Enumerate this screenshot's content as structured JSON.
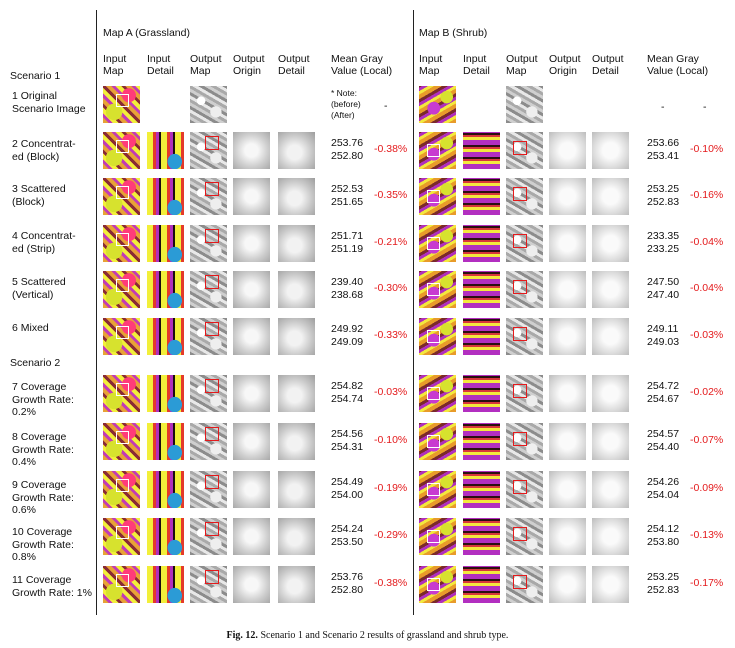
{
  "panels": [
    {
      "title": "Map A (Grassland)"
    },
    {
      "title": "Map B (Shrub)"
    }
  ],
  "column_headers": {
    "input_map": "Input Map",
    "input_detail": "Input Detail",
    "output_map": "Output Map",
    "output_origin": "Output Origin",
    "output_detail": "Output Detail",
    "mean_gray": "Mean Gray Value (Local)"
  },
  "scenario_labels": [
    "Scenario 1",
    "Scenario 2"
  ],
  "note_text": "* Note: (before) (After)",
  "dash": "-",
  "rows": [
    {
      "label": "1 Original Scenario Image",
      "a_before": "",
      "a_after": "",
      "a_pct": "",
      "b_before": "",
      "b_after": "",
      "b_pct": ""
    },
    {
      "label": "2 Concentrat-ed (Block)",
      "a_before": "253.76",
      "a_after": "252.80",
      "a_pct": "-0.38%",
      "b_before": "253.66",
      "b_after": "253.41",
      "b_pct": "-0.10%"
    },
    {
      "label": "3 Scattered (Block)",
      "a_before": "252.53",
      "a_after": "251.65",
      "a_pct": "-0.35%",
      "b_before": "253.25",
      "b_after": "252.83",
      "b_pct": "-0.16%"
    },
    {
      "label": "4 Concentrat-ed (Strip)",
      "a_before": "251.71",
      "a_after": "251.19",
      "a_pct": "-0.21%",
      "b_before": "233.35",
      "b_after": "233.25",
      "b_pct": "-0.04%"
    },
    {
      "label": "5 Scattered (Vertical)",
      "a_before": "239.40",
      "a_after": "238.68",
      "a_pct": "-0.30%",
      "b_before": "247.50",
      "b_after": "247.40",
      "b_pct": "-0.04%"
    },
    {
      "label": "6 Mixed",
      "a_before": "249.92",
      "a_after": "249.09",
      "a_pct": "-0.33%",
      "b_before": "249.11",
      "b_after": "249.03",
      "b_pct": "-0.03%"
    },
    {
      "label": "7 Coverage Growth Rate: 0.2%",
      "a_before": "254.82",
      "a_after": "254.74",
      "a_pct": "-0.03%",
      "b_before": "254.72",
      "b_after": "254.67",
      "b_pct": "-0.02%"
    },
    {
      "label": "8 Coverage Growth Rate: 0.4%",
      "a_before": "254.56",
      "a_after": "254.31",
      "a_pct": "-0.10%",
      "b_before": "254.57",
      "b_after": "254.40",
      "b_pct": "-0.07%"
    },
    {
      "label": "9 Coverage Growth Rate: 0.6%",
      "a_before": "254.49",
      "a_after": "254.00",
      "a_pct": "-0.19%",
      "b_before": "254.26",
      "b_after": "254.04",
      "b_pct": "-0.09%"
    },
    {
      "label": "10 Coverage Growth Rate: 0.8%",
      "a_before": "254.24",
      "a_after": "253.50",
      "a_pct": "-0.29%",
      "b_before": "254.12",
      "b_after": "253.80",
      "b_pct": "-0.13%"
    },
    {
      "label": "11 Coverage Growth Rate: 1%",
      "a_before": "253.76",
      "a_after": "252.80",
      "a_pct": "-0.38%",
      "b_before": "253.25",
      "b_after": "252.83",
      "b_pct": "-0.17%"
    }
  ],
  "caption": {
    "label": "Fig. 12.",
    "text": "Scenario 1 and Scenario 2 results of grassland and shrub type."
  }
}
